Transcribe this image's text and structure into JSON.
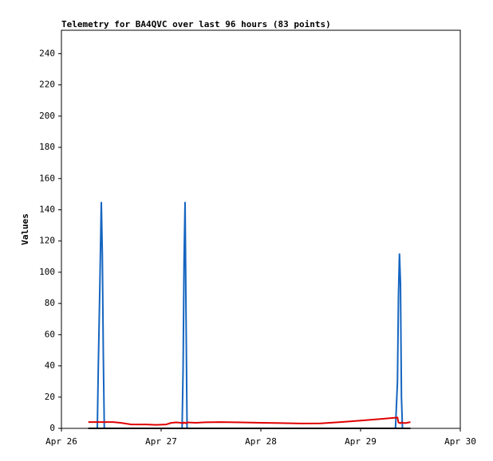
{
  "chart_data": {
    "type": "line",
    "title": "Telemetry for BA4QVC over last 96 hours (83 points)",
    "y_label": "Values",
    "x": [
      26.27,
      26.3,
      26.36,
      26.37,
      26.385,
      26.4,
      26.41,
      26.42,
      26.43,
      26.44,
      26.52,
      26.6,
      26.7,
      26.85,
      26.95,
      27.05,
      27.1,
      27.15,
      27.21,
      27.22,
      27.23,
      27.24,
      27.25,
      27.26,
      27.35,
      27.45,
      27.6,
      27.8,
      28.0,
      28.2,
      28.4,
      28.6,
      28.8,
      29.0,
      29.2,
      29.35,
      29.37,
      29.38,
      29.39,
      29.4,
      29.41,
      29.42,
      29.45,
      29.5
    ],
    "series": [
      {
        "color": "#1565c0",
        "values": [
          0,
          0,
          0,
          40,
          90,
          145,
          112,
          48,
          0,
          0,
          0,
          0,
          0,
          0,
          0,
          0,
          0,
          0,
          0,
          37,
          108,
          145,
          70,
          0,
          0,
          0,
          0,
          0,
          0,
          0,
          0,
          0,
          0,
          0,
          0,
          0,
          30,
          85,
          112,
          93,
          20,
          0,
          0,
          0
        ]
      },
      {
        "color": "#e00000",
        "values": [
          4,
          4,
          4,
          4,
          4,
          4,
          4,
          4,
          4,
          4,
          4,
          3.5,
          2.5,
          2.5,
          2.2,
          2.5,
          3.5,
          3.8,
          3.5,
          3.3,
          3.8,
          3.5,
          3.3,
          3.8,
          3.6,
          3.9,
          4,
          3.8,
          3.6,
          3.4,
          3.1,
          3.2,
          4,
          5,
          6,
          6.8,
          6.9,
          3.8,
          3.5,
          3.3,
          3.8,
          3.5,
          3.4,
          4
        ]
      },
      {
        "color": "#000000",
        "values": [
          0,
          0,
          0,
          0,
          0,
          0,
          0,
          0,
          0,
          0,
          0,
          0,
          0,
          0,
          0,
          0,
          0,
          0,
          0,
          0,
          0,
          0,
          0,
          0,
          0,
          0,
          0,
          0,
          0,
          0,
          0,
          0,
          0,
          0,
          0,
          0,
          0,
          0,
          0,
          0,
          0,
          0,
          0,
          0
        ]
      }
    ],
    "xlim": [
      26,
      30
    ],
    "xticks": [
      {
        "value": 26,
        "label": "Apr 26"
      },
      {
        "value": 27,
        "label": "Apr 27"
      },
      {
        "value": 28,
        "label": "Apr 28"
      },
      {
        "value": 29,
        "label": "Apr 29"
      },
      {
        "value": 30,
        "label": "Apr 30"
      }
    ],
    "ylim": [
      0,
      255
    ],
    "yticks": [
      0,
      20,
      40,
      60,
      80,
      100,
      120,
      140,
      160,
      180,
      200,
      220,
      240
    ],
    "grid": false
  }
}
